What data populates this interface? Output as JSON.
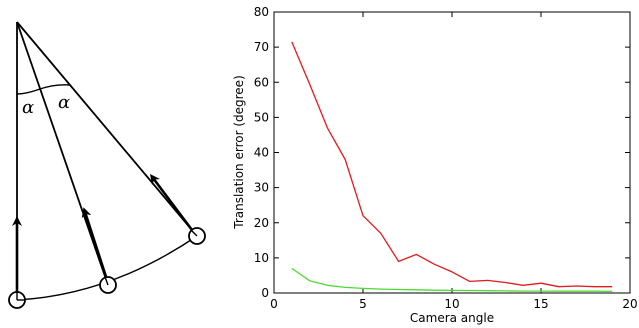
{
  "diagram": {
    "angle_labels": [
      "α",
      "α"
    ]
  },
  "chart_data": {
    "type": "line",
    "title": "",
    "xlabel": "Camera angle",
    "ylabel": "Translation error (degree)",
    "xlim": [
      0,
      20
    ],
    "ylim": [
      0,
      80
    ],
    "xticks": [
      0,
      5,
      10,
      15,
      20
    ],
    "yticks": [
      0,
      10,
      20,
      30,
      40,
      50,
      60,
      70,
      80
    ],
    "grid": false,
    "legend": "none",
    "x": [
      1,
      2,
      3,
      4,
      5,
      6,
      7,
      8,
      9,
      10,
      11,
      12,
      13,
      14,
      15,
      16,
      17,
      18,
      19
    ],
    "series": [
      {
        "color": "#e41a1c",
        "values": [
          71.5,
          59.5,
          47,
          38,
          22,
          17,
          9,
          11,
          8.2,
          6,
          3.3,
          3.6,
          3,
          2.2,
          2.8,
          1.8,
          2,
          1.8,
          1.8
        ]
      },
      {
        "color": "#4ddb33",
        "values": [
          7,
          3.5,
          2.2,
          1.6,
          1.3,
          1.1,
          1,
          0.9,
          0.8,
          0.75,
          0.7,
          0.65,
          0.6,
          0.55,
          0.55,
          0.5,
          0.5,
          0.5,
          0.45
        ]
      }
    ]
  }
}
